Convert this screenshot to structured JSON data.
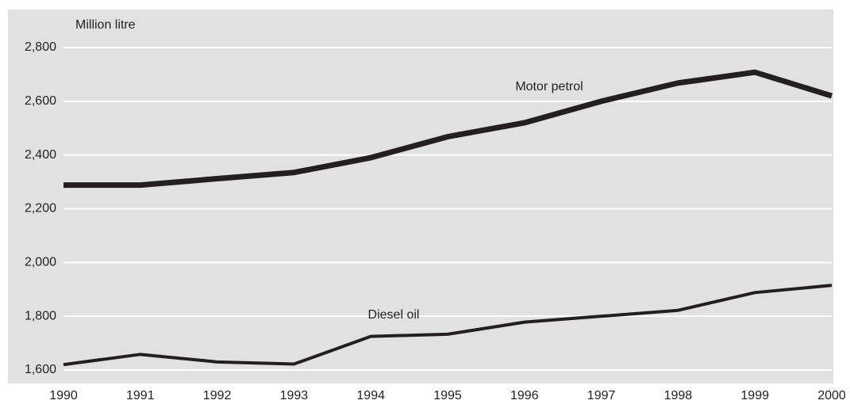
{
  "chart_data": {
    "type": "line",
    "y_label": "Million litre",
    "x": [
      1990,
      1991,
      1992,
      1993,
      1994,
      1995,
      1996,
      1997,
      1998,
      1999,
      2000
    ],
    "xlim": [
      1990,
      2000
    ],
    "xticks": [
      1990,
      1991,
      1992,
      1993,
      1994,
      1995,
      1996,
      1997,
      1998,
      1999,
      2000
    ],
    "ylim": [
      1600,
      2800
    ],
    "yticks": [
      {
        "value": 1600,
        "label": "1,600"
      },
      {
        "value": 1800,
        "label": "1,800"
      },
      {
        "value": 2000,
        "label": "2,000"
      },
      {
        "value": 2200,
        "label": "2,200"
      },
      {
        "value": 2400,
        "label": "2,400"
      },
      {
        "value": 2600,
        "label": "2,600"
      },
      {
        "value": 2800,
        "label": "2,800"
      }
    ],
    "grid": true,
    "series": [
      {
        "name": "Motor petrol",
        "color": "#231f20",
        "values": [
          2288,
          2288,
          2312,
          2335,
          2390,
          2468,
          2520,
          2600,
          2668,
          2708,
          2620
        ]
      },
      {
        "name": "Diesel oil",
        "color": "#231f20",
        "values": [
          1620,
          1658,
          1630,
          1622,
          1725,
          1733,
          1778,
          1800,
          1822,
          1888,
          1915
        ]
      }
    ]
  }
}
